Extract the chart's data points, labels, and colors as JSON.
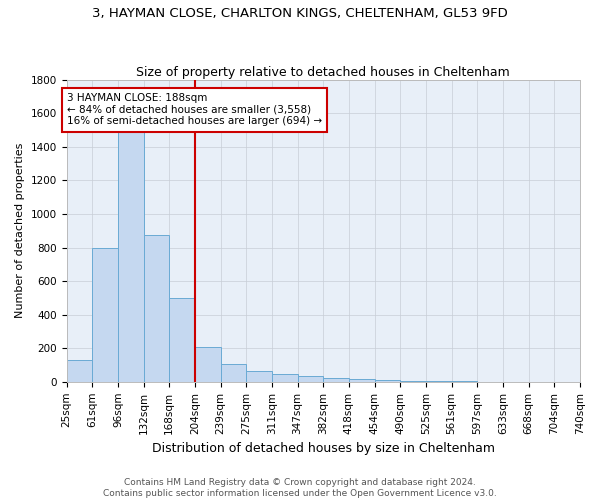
{
  "title": "3, HAYMAN CLOSE, CHARLTON KINGS, CHELTENHAM, GL53 9FD",
  "subtitle": "Size of property relative to detached houses in Cheltenham",
  "xlabel": "Distribution of detached houses by size in Cheltenham",
  "ylabel": "Number of detached properties",
  "bar_values": [
    130,
    800,
    1490,
    875,
    500,
    205,
    105,
    65,
    48,
    35,
    25,
    15,
    8,
    5,
    3,
    2,
    1,
    0,
    0,
    0
  ],
  "bar_labels": [
    "25sqm",
    "61sqm",
    "96sqm",
    "132sqm",
    "168sqm",
    "204sqm",
    "239sqm",
    "275sqm",
    "311sqm",
    "347sqm",
    "382sqm",
    "418sqm",
    "454sqm",
    "490sqm",
    "525sqm",
    "561sqm",
    "597sqm",
    "633sqm",
    "668sqm",
    "704sqm",
    "740sqm"
  ],
  "bar_color": "#c5d8f0",
  "bar_edge_color": "#6aaad4",
  "vline_x": 5,
  "vline_color": "#cc0000",
  "annotation_text": "3 HAYMAN CLOSE: 188sqm\n← 84% of detached houses are smaller (3,558)\n16% of semi-detached houses are larger (694) →",
  "annotation_box_color": "white",
  "annotation_box_edge": "#cc0000",
  "ylim": [
    0,
    1800
  ],
  "yticks": [
    0,
    200,
    400,
    600,
    800,
    1000,
    1200,
    1400,
    1600,
    1800
  ],
  "background_color": "#e8eff8",
  "grid_color": "#c8cdd6",
  "footer_text": "Contains HM Land Registry data © Crown copyright and database right 2024.\nContains public sector information licensed under the Open Government Licence v3.0.",
  "title_fontsize": 9.5,
  "subtitle_fontsize": 9,
  "xlabel_fontsize": 9,
  "ylabel_fontsize": 8,
  "tick_fontsize": 7.5,
  "footer_fontsize": 6.5
}
